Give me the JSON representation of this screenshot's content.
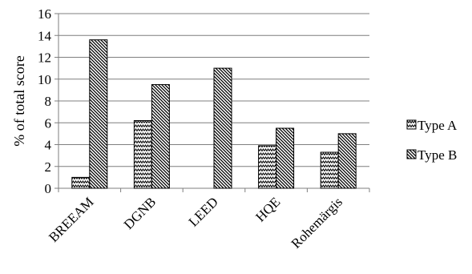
{
  "chart_data": {
    "type": "bar",
    "categories": [
      "BREEAM",
      "DGNB",
      "LEED",
      "HQE",
      "Rohemärgis"
    ],
    "series": [
      {
        "name": "Type A",
        "values": [
          1.0,
          6.2,
          0,
          3.9,
          3.3
        ],
        "pattern": "zigzag"
      },
      {
        "name": "Type B",
        "values": [
          13.6,
          9.5,
          11.0,
          5.5,
          5.0
        ],
        "pattern": "diagonal-hatch"
      }
    ],
    "title": "",
    "xlabel": "",
    "ylabel": "% of total score",
    "ylim": [
      0,
      16
    ],
    "yticks": [
      "0",
      "2",
      "4",
      "6",
      "8",
      "10",
      "12",
      "14",
      "16"
    ],
    "grid": true,
    "legend": "right",
    "colors": {
      "bar_stroke": "#000000",
      "grid": "#7f7f7f",
      "axis": "#7f7f7f",
      "background": "#ffffff"
    }
  }
}
